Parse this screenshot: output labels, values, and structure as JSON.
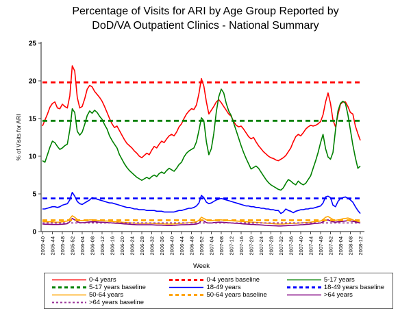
{
  "title": {
    "line1": "Percentage of Visits for ARI by Age Group Reported by",
    "line2": "DoD/VA Outpatient Clinics - National Summary"
  },
  "chart_data": {
    "type": "line",
    "title": "Percentage of Visits for ARI by Age Group Reported by DoD/VA Outpatient Clinics - National Summary",
    "xlabel": "Week",
    "ylabel": "% of Visits for ARI",
    "ylim": [
      0,
      25
    ],
    "y_ticks": [
      0,
      5,
      10,
      15,
      20,
      25
    ],
    "grid": false,
    "legend_position": "bottom-box",
    "x_tick_interval_weeks": 4,
    "n_points": 129,
    "x_tick_labels": [
      "2005-40",
      "2005-44",
      "2005-48",
      "2005-52",
      "2006-04",
      "2006-08",
      "2006-12",
      "2006-16",
      "2006-20",
      "2006-24",
      "2006-28",
      "2006-32",
      "2006-36",
      "2006-40",
      "2006-44",
      "2006-48",
      "2006-52",
      "2007-04",
      "2007-08",
      "2007-12",
      "2007-16",
      "2007-20",
      "2007-24",
      "2007-28",
      "2007-32",
      "2007-36",
      "2007-40",
      "2007-44",
      "2007-48",
      "2007-52",
      "2008-04",
      "2008-08",
      "2008-12"
    ],
    "series": [
      {
        "name": "0-4 years",
        "color": "#FF0000",
        "style": "solid",
        "values": [
          14.0,
          14.8,
          15.6,
          16.5,
          17.0,
          17.2,
          16.4,
          16.3,
          16.9,
          16.6,
          16.4,
          18.0,
          22.0,
          21.3,
          17.8,
          16.4,
          16.6,
          17.6,
          18.9,
          19.4,
          19.2,
          18.6,
          18.2,
          17.8,
          17.3,
          16.6,
          15.8,
          15.0,
          14.3,
          13.8,
          14.0,
          13.4,
          12.8,
          12.2,
          11.7,
          11.4,
          11.1,
          10.7,
          10.4,
          10.0,
          9.8,
          10.1,
          10.4,
          10.2,
          10.8,
          11.3,
          11.1,
          11.6,
          12.0,
          11.8,
          12.3,
          12.7,
          12.9,
          12.7,
          13.2,
          13.9,
          14.3,
          15.0,
          15.6,
          16.0,
          16.3,
          16.2,
          16.8,
          18.3,
          20.3,
          19.3,
          17.2,
          15.6,
          16.1,
          16.6,
          17.2,
          17.5,
          17.1,
          16.6,
          16.1,
          15.6,
          15.3,
          14.6,
          14.1,
          13.9,
          14.0,
          13.6,
          13.1,
          12.6,
          12.3,
          12.5,
          11.9,
          11.4,
          11.0,
          10.6,
          10.3,
          10.0,
          9.8,
          9.7,
          9.5,
          9.4,
          9.6,
          9.8,
          10.1,
          10.6,
          11.1,
          11.9,
          12.6,
          12.9,
          12.7,
          13.1,
          13.6,
          13.9,
          14.1,
          14.0,
          14.1,
          14.3,
          14.6,
          15.5,
          17.2,
          18.4,
          17.0,
          14.8,
          13.9,
          15.5,
          16.9,
          17.2,
          17.2,
          16.6,
          15.8,
          15.6,
          14.0,
          13.0,
          12.1
        ]
      },
      {
        "name": "5-17 years",
        "color": "#008000",
        "style": "solid",
        "values": [
          9.4,
          9.2,
          10.2,
          11.2,
          12.0,
          11.8,
          11.3,
          10.9,
          11.1,
          11.4,
          11.6,
          13.5,
          16.3,
          15.8,
          13.3,
          12.8,
          13.2,
          14.2,
          15.4,
          16.0,
          15.7,
          16.1,
          15.8,
          15.3,
          14.9,
          14.2,
          13.6,
          12.7,
          12.1,
          11.6,
          11.1,
          10.2,
          9.6,
          9.0,
          8.5,
          8.1,
          7.8,
          7.5,
          7.2,
          7.0,
          6.8,
          7.0,
          7.2,
          7.0,
          7.3,
          7.5,
          7.3,
          7.7,
          7.9,
          7.7,
          8.1,
          8.4,
          8.2,
          8.0,
          8.4,
          8.9,
          9.2,
          9.9,
          10.4,
          10.7,
          10.9,
          11.1,
          11.9,
          13.4,
          15.1,
          14.7,
          11.9,
          10.2,
          11.0,
          13.0,
          15.9,
          17.9,
          18.9,
          18.4,
          17.0,
          16.0,
          15.4,
          14.4,
          13.4,
          12.4,
          11.4,
          10.5,
          9.7,
          9.0,
          8.3,
          8.5,
          8.7,
          8.4,
          7.9,
          7.4,
          6.9,
          6.5,
          6.2,
          6.0,
          5.8,
          5.6,
          5.5,
          5.8,
          6.4,
          6.9,
          6.7,
          6.4,
          6.2,
          6.7,
          6.4,
          6.2,
          6.4,
          6.9,
          7.4,
          8.4,
          9.4,
          10.5,
          11.8,
          12.9,
          11.0,
          9.9,
          9.6,
          10.5,
          13.5,
          16.0,
          17.0,
          17.3,
          17.0,
          15.5,
          13.5,
          11.5,
          9.8,
          8.4,
          8.7
        ]
      },
      {
        "name": "18-49 years",
        "color": "#0000FF",
        "style": "solid",
        "values": [
          3.0,
          3.0,
          3.1,
          3.2,
          3.3,
          3.3,
          3.2,
          3.3,
          3.5,
          3.6,
          3.7,
          4.2,
          5.2,
          4.7,
          4.0,
          3.7,
          3.6,
          3.8,
          4.0,
          4.2,
          4.5,
          4.4,
          4.3,
          4.2,
          4.1,
          4.0,
          3.9,
          3.8,
          3.8,
          3.7,
          3.6,
          3.5,
          3.4,
          3.3,
          3.2,
          3.2,
          3.1,
          3.0,
          3.0,
          2.9,
          2.9,
          2.9,
          2.8,
          2.8,
          2.8,
          2.8,
          2.7,
          2.7,
          2.7,
          2.6,
          2.6,
          2.6,
          2.6,
          2.6,
          2.7,
          2.8,
          2.8,
          2.9,
          3.0,
          3.1,
          3.1,
          3.2,
          3.4,
          3.8,
          4.8,
          4.5,
          3.9,
          3.7,
          3.8,
          4.0,
          4.2,
          4.3,
          4.4,
          4.3,
          4.2,
          4.1,
          4.0,
          3.9,
          3.8,
          3.7,
          3.6,
          3.5,
          3.4,
          3.4,
          3.3,
          3.3,
          3.2,
          3.2,
          3.1,
          3.1,
          3.0,
          3.0,
          2.9,
          2.9,
          2.8,
          2.8,
          2.4,
          2.6,
          3.0,
          2.8,
          2.7,
          2.5,
          2.7,
          2.8,
          2.9,
          2.9,
          3.0,
          3.0,
          3.1,
          3.1,
          3.2,
          3.3,
          3.4,
          3.8,
          4.6,
          4.7,
          4.5,
          3.5,
          3.3,
          4.0,
          4.4,
          4.5,
          4.6,
          4.4,
          4.2,
          3.9,
          3.3,
          2.8,
          2.4
        ]
      },
      {
        "name": "50-64 years",
        "color": "#FFA500",
        "style": "solid",
        "values": [
          1.35,
          1.3,
          1.3,
          1.3,
          1.3,
          1.25,
          1.25,
          1.25,
          1.3,
          1.35,
          1.4,
          1.7,
          2.1,
          1.9,
          1.6,
          1.5,
          1.45,
          1.5,
          1.5,
          1.55,
          1.55,
          1.5,
          1.5,
          1.45,
          1.45,
          1.4,
          1.4,
          1.35,
          1.35,
          1.3,
          1.3,
          1.28,
          1.25,
          1.22,
          1.2,
          1.18,
          1.15,
          1.12,
          1.1,
          1.1,
          1.1,
          1.1,
          1.1,
          1.1,
          1.1,
          1.08,
          1.05,
          1.05,
          1.05,
          1.02,
          1.0,
          1.0,
          1.0,
          1.02,
          1.05,
          1.1,
          1.1,
          1.12,
          1.15,
          1.18,
          1.2,
          1.25,
          1.3,
          1.5,
          1.9,
          1.75,
          1.55,
          1.45,
          1.45,
          1.5,
          1.52,
          1.55,
          1.55,
          1.52,
          1.5,
          1.48,
          1.45,
          1.42,
          1.4,
          1.38,
          1.35,
          1.32,
          1.3,
          1.28,
          1.25,
          1.25,
          1.22,
          1.2,
          1.18,
          1.15,
          1.12,
          1.1,
          1.08,
          1.05,
          1.02,
          1.0,
          1.0,
          1.0,
          1.05,
          1.05,
          1.08,
          1.1,
          1.1,
          1.12,
          1.15,
          1.18,
          1.2,
          1.22,
          1.25,
          1.3,
          1.32,
          1.35,
          1.4,
          1.6,
          1.9,
          2.0,
          1.8,
          1.6,
          1.5,
          1.55,
          1.6,
          1.7,
          1.75,
          1.8,
          1.7,
          1.55,
          1.4,
          1.3,
          1.25
        ]
      },
      {
        "name": ">64 years",
        "color": "#800080",
        "style": "solid",
        "values": [
          1.0,
          0.98,
          0.97,
          0.96,
          0.95,
          0.95,
          0.95,
          0.96,
          0.98,
          1.0,
          1.05,
          1.3,
          1.75,
          1.55,
          1.3,
          1.2,
          1.18,
          1.2,
          1.25,
          1.28,
          1.3,
          1.3,
          1.28,
          1.25,
          1.25,
          1.22,
          1.2,
          1.18,
          1.15,
          1.12,
          1.1,
          1.08,
          1.05,
          1.02,
          1.0,
          0.98,
          0.95,
          0.93,
          0.9,
          0.9,
          0.9,
          0.9,
          0.9,
          0.9,
          0.9,
          0.88,
          0.85,
          0.85,
          0.85,
          0.82,
          0.8,
          0.8,
          0.8,
          0.82,
          0.85,
          0.88,
          0.9,
          0.9,
          0.92,
          0.93,
          0.95,
          0.97,
          1.0,
          1.1,
          1.5,
          1.4,
          1.2,
          1.15,
          1.15,
          1.2,
          1.22,
          1.25,
          1.25,
          1.22,
          1.2,
          1.18,
          1.15,
          1.12,
          1.1,
          1.08,
          1.05,
          1.02,
          1.0,
          0.98,
          0.95,
          0.95,
          0.92,
          0.9,
          0.88,
          0.85,
          0.82,
          0.8,
          0.79,
          0.77,
          0.76,
          0.75,
          0.75,
          0.76,
          0.78,
          0.8,
          0.82,
          0.84,
          0.85,
          0.87,
          0.9,
          0.92,
          0.95,
          0.97,
          1.0,
          1.05,
          1.08,
          1.1,
          1.15,
          1.3,
          1.5,
          1.55,
          1.4,
          1.3,
          1.25,
          1.3,
          1.32,
          1.35,
          1.4,
          1.45,
          1.4,
          1.35,
          1.3,
          1.2,
          1.15
        ]
      }
    ],
    "baselines": [
      {
        "name": "0-4 years baseline",
        "color": "#FF0000",
        "value": 19.8,
        "thin": false
      },
      {
        "name": "5-17 years baseline",
        "color": "#008000",
        "value": 14.7,
        "thin": false
      },
      {
        "name": "18-49 years baseline",
        "color": "#0000FF",
        "value": 4.4,
        "thin": false
      },
      {
        "name": "50-64 years baseline",
        "color": "#FFA500",
        "value": 1.5,
        "thin": false
      },
      {
        "name": ">64 years baseline",
        "color": "#993399",
        "value": 1.15,
        "thin": true
      }
    ],
    "legend_items": [
      {
        "label": "0-4 years",
        "color": "#FF0000",
        "style": "solid"
      },
      {
        "label": "0-4 years baseline",
        "color": "#FF0000",
        "style": "dashed"
      },
      {
        "label": "5-17 years",
        "color": "#008000",
        "style": "solid"
      },
      {
        "label": "5-17 years baseline",
        "color": "#008000",
        "style": "dashed"
      },
      {
        "label": "18-49 years",
        "color": "#0000FF",
        "style": "solid"
      },
      {
        "label": "18-49 years baseline",
        "color": "#0000FF",
        "style": "dashed"
      },
      {
        "label": "50-64 years",
        "color": "#FFA500",
        "style": "solid"
      },
      {
        "label": "50-64 years baseline",
        "color": "#FFA500",
        "style": "dashed"
      },
      {
        "label": ">64 years",
        "color": "#800080",
        "style": "solid"
      },
      {
        "label": ">64 years baseline",
        "color": "#993399",
        "style": "dotted"
      }
    ]
  }
}
